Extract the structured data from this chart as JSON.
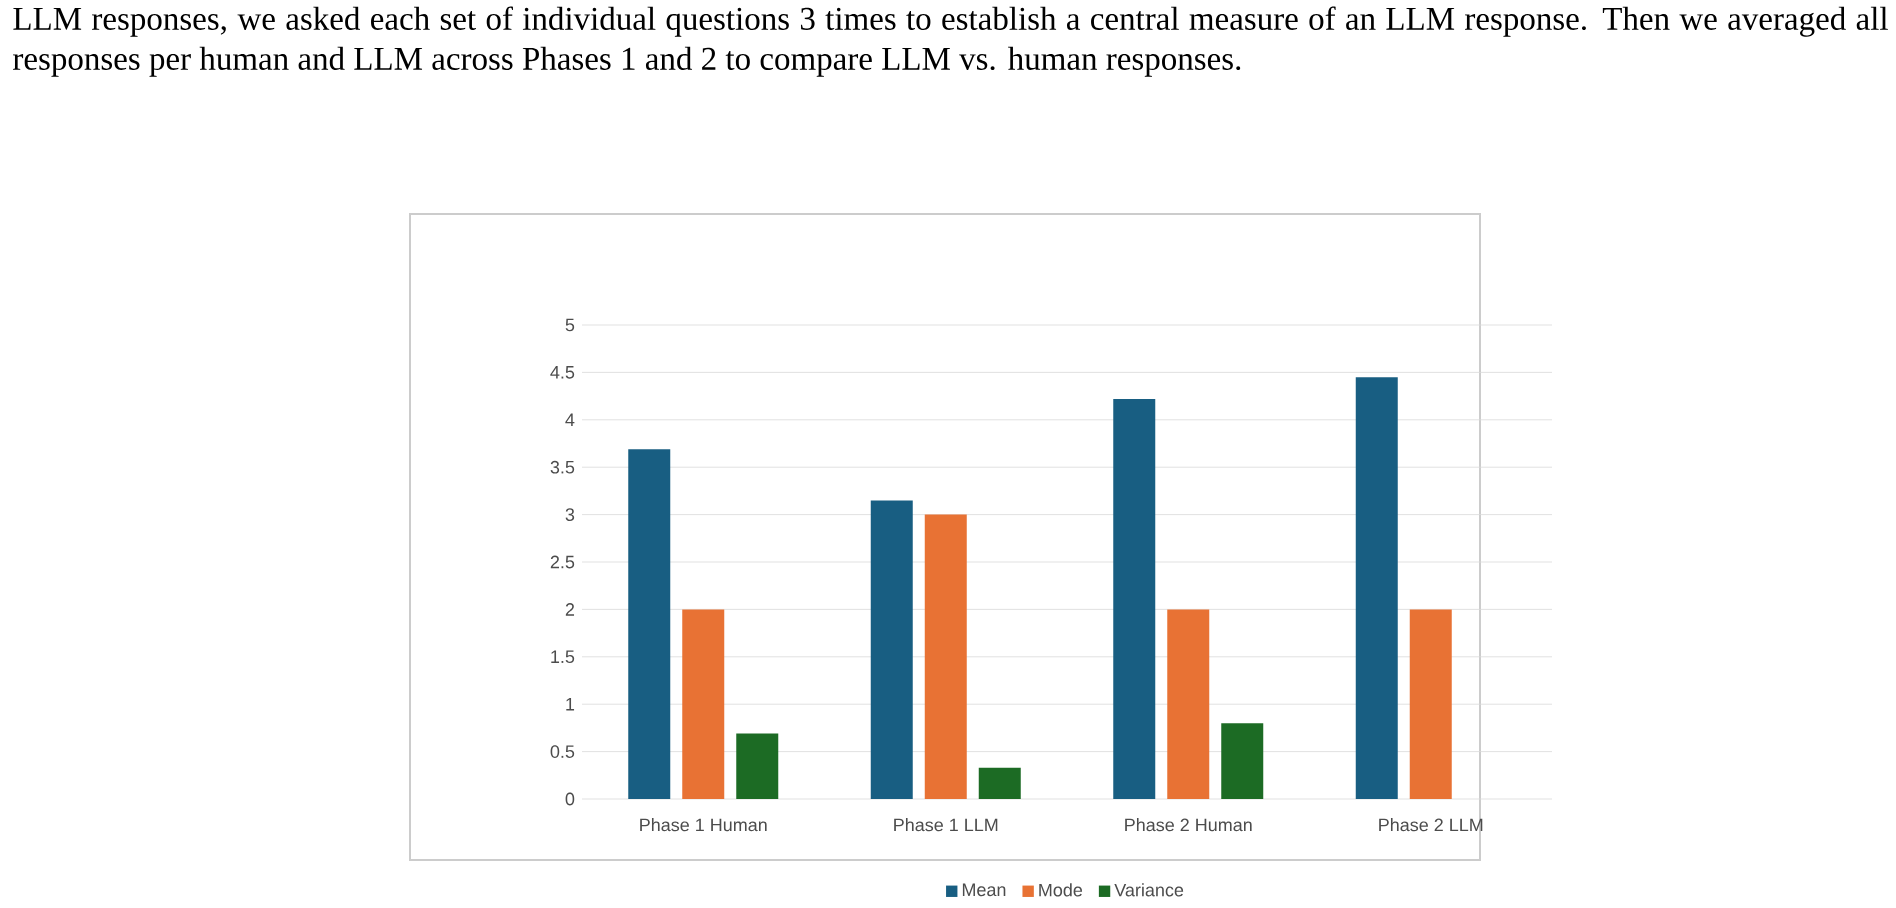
{
  "chart_data": {
    "type": "bar",
    "annotations": [
      "LLM responses, we asked each set of individual questions 3 times to establish a central measure of an LLM response. Then we averaged all responses per human and LLM across Phases 1 and 2 to compare LLM vs. human responses."
    ],
    "categories": [
      "Phase 1 Human",
      "Phase 1 LLM",
      "Phase 2 Human",
      "Phase 2 LLM"
    ],
    "series": [
      {
        "name": "Mean",
        "color": "#185e82",
        "values": [
          3.69,
          3.15,
          4.22,
          4.45
        ]
      },
      {
        "name": "Mode",
        "color": "#e87234",
        "values": [
          2,
          3,
          2,
          2
        ]
      },
      {
        "name": "Variance",
        "color": "#1c6b24",
        "values": [
          0.69,
          0.33,
          0.8,
          null
        ]
      }
    ],
    "ylim": [
      0,
      5
    ],
    "yticks": [
      0,
      0.5,
      1,
      1.5,
      2,
      2.5,
      3,
      3.5,
      4,
      4.5,
      5
    ],
    "grid": "y",
    "legend": "bottom"
  }
}
